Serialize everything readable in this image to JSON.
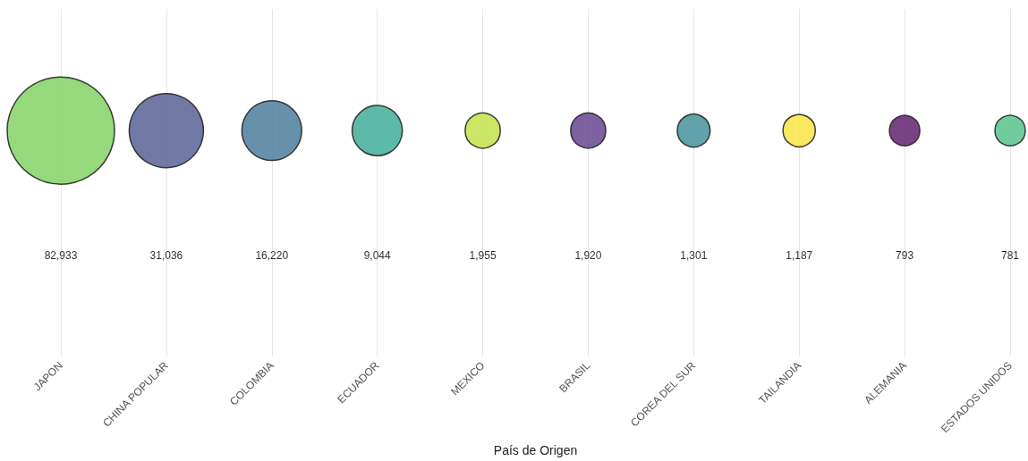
{
  "chart_data": {
    "type": "other",
    "xlabel": "País de Origen",
    "categories": [
      "JAPON",
      "CHINA POPULAR",
      "COLOMBIA",
      "ECUADOR",
      "MEXICO",
      "BRASIL",
      "COREA DEL SUR",
      "TAILANDIA",
      "ALEMANIA",
      "ESTADOS UNIDOS"
    ],
    "values": [
      82933,
      31036,
      16220,
      9044,
      1955,
      1920,
      1301,
      1187,
      793,
      781
    ],
    "value_labels": [
      "82,933",
      "31,036",
      "16,220",
      "9,044",
      "1,955",
      "1,920",
      "1,301",
      "1,187",
      "793",
      "781"
    ],
    "colors": [
      "#86d46a",
      "#5e6699",
      "#52829f",
      "#48b09c",
      "#c4e250",
      "#6b4b94",
      "#4a969e",
      "#f8e54a",
      "#64296f",
      "#5cc58e"
    ]
  }
}
